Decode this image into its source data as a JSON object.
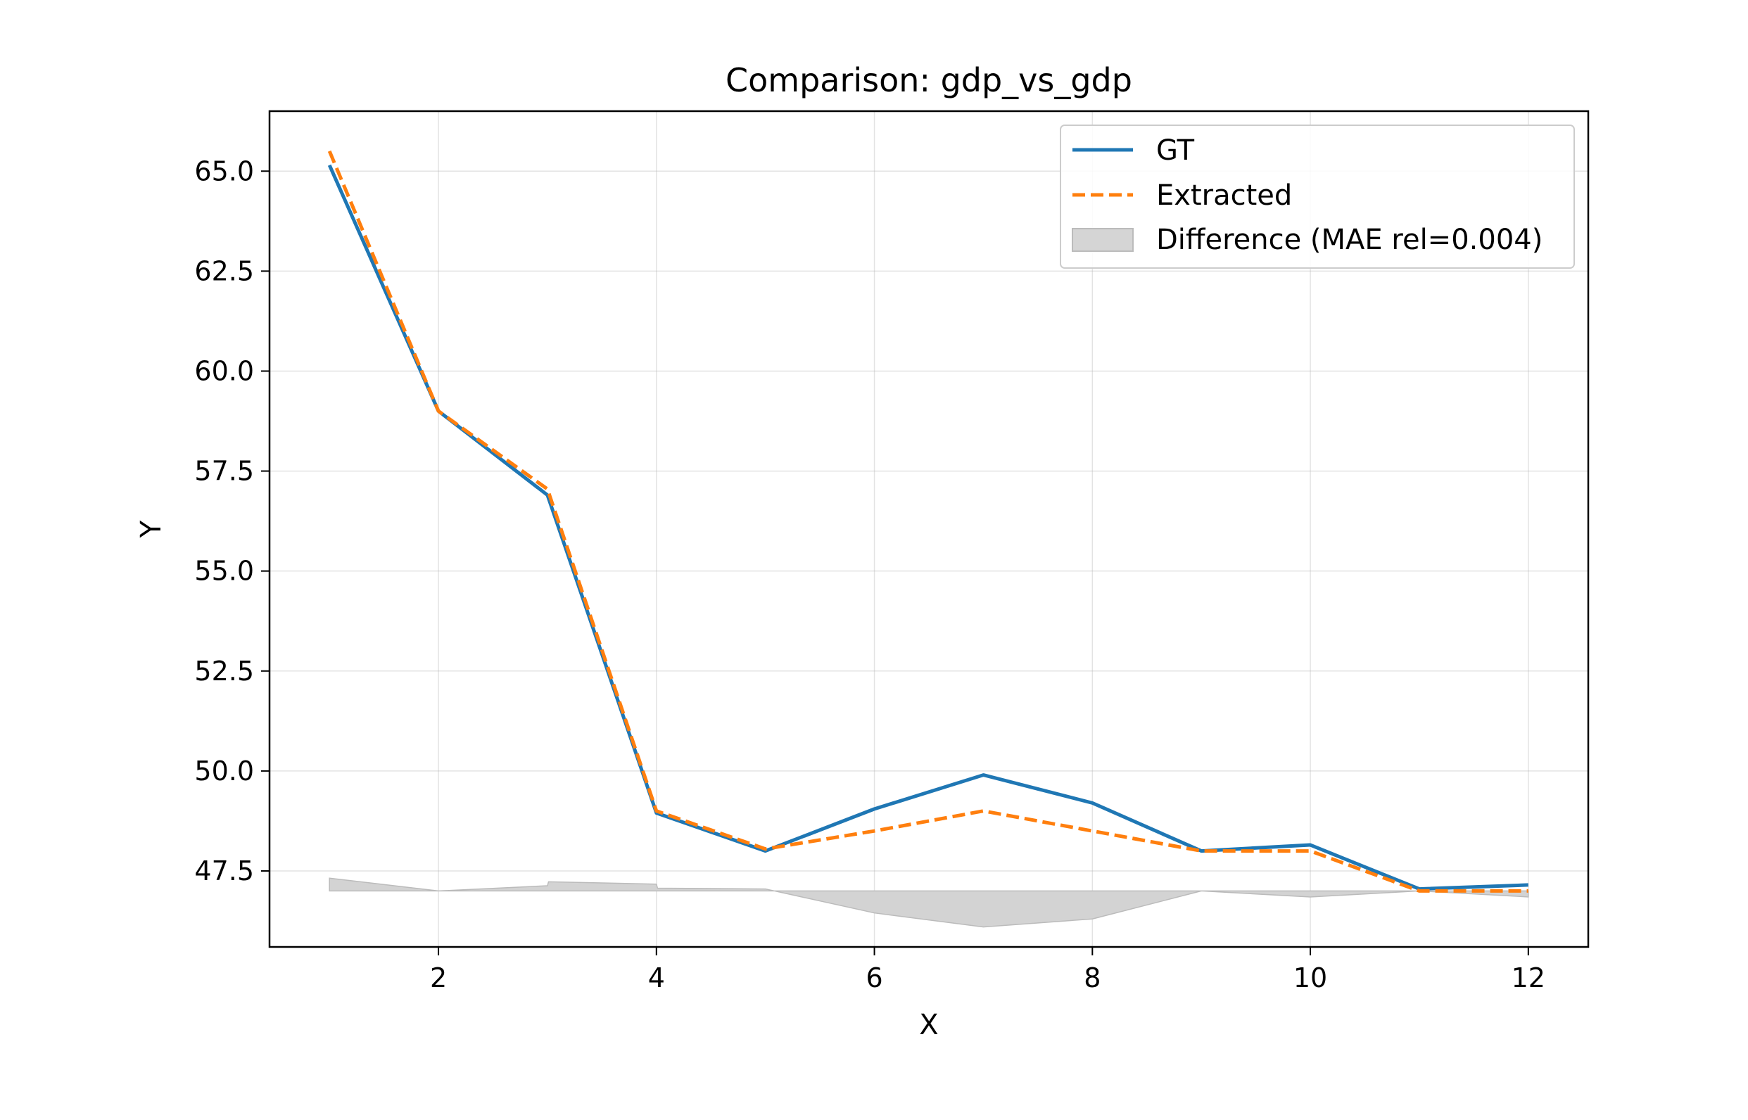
{
  "chart_data": {
    "type": "line",
    "title": "Comparison: gdp_vs_gdp",
    "xlabel": "X",
    "ylabel": "Y",
    "xlim": [
      0.45,
      12.55
    ],
    "ylim": [
      45.6,
      66.5
    ],
    "xticks": [
      2,
      4,
      6,
      8,
      10,
      12
    ],
    "xtick_labels": [
      "2",
      "4",
      "6",
      "8",
      "10",
      "12"
    ],
    "yticks": [
      47.5,
      50.0,
      52.5,
      55.0,
      57.5,
      60.0,
      62.5,
      65.0
    ],
    "ytick_labels": [
      "47.5",
      "50.0",
      "52.5",
      "55.0",
      "57.5",
      "60.0",
      "62.5",
      "65.0"
    ],
    "grid": true,
    "legend_position": "top-right",
    "x": [
      1,
      2,
      3,
      4,
      5,
      6,
      7,
      8,
      9,
      10,
      11,
      12
    ],
    "series": [
      {
        "name": "GT",
        "color": "#1f77b4",
        "style": "solid",
        "values": [
          65.15,
          59.0,
          56.9,
          48.95,
          48.0,
          49.05,
          49.9,
          49.2,
          48.0,
          48.15,
          47.05,
          47.15
        ]
      },
      {
        "name": "Extracted",
        "color": "#ff7f0e",
        "style": "dashed",
        "values": [
          65.5,
          59.0,
          57.05,
          49.0,
          48.05,
          48.5,
          49.0,
          48.5,
          48.0,
          48.0,
          47.0,
          47.0
        ]
      }
    ],
    "difference": {
      "name": "Difference (MAE rel=0.004)",
      "color": "#bbbbbb",
      "baseline": 47.0,
      "x": [
        1,
        2,
        3,
        3.01,
        4,
        4.01,
        5,
        6,
        7,
        8,
        9,
        10,
        11,
        12
      ],
      "values": [
        47.32,
        47.0,
        47.13,
        47.23,
        47.17,
        47.07,
        47.05,
        46.45,
        46.1,
        46.3,
        47.0,
        46.85,
        47.0,
        46.85
      ]
    }
  }
}
